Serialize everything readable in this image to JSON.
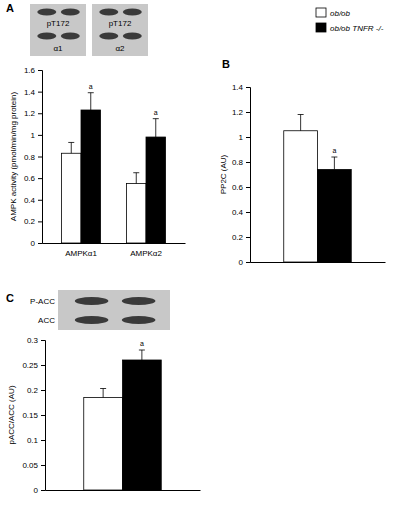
{
  "chart_data": [
    {
      "type": "bar",
      "title": "A",
      "categories": [
        "AMPKα1",
        "AMPKα2"
      ],
      "y_label": "AMPK activity (pmol/min/mg protein)",
      "series": [
        {
          "color": "#ffffff",
          "values": [
            0.83,
            0.55
          ],
          "errors": [
            0.1,
            0.1
          ]
        },
        {
          "color": "#000000",
          "values": [
            1.23,
            0.98
          ],
          "errors": [
            0.16,
            0.17
          ],
          "significance": [
            "a",
            "a"
          ]
        }
      ],
      "ylim": [
        0,
        1.6
      ],
      "yticks": [
        0,
        0.2,
        0.4,
        0.6,
        0.8,
        1,
        1.2,
        1.4,
        1.6
      ],
      "blots": [
        {
          "labels": [
            "pT172",
            "α1"
          ]
        },
        {
          "labels": [
            "pT172",
            "α2"
          ]
        }
      ]
    },
    {
      "type": "bar",
      "title": "B",
      "categories": [
        null
      ],
      "y_label": "PP2C (AU)",
      "series": [
        {
          "name": "ob/ob",
          "color": "#ffffff",
          "values": [
            1.05
          ],
          "errors": [
            0.13
          ]
        },
        {
          "name": "ob/ob TNFR -/-",
          "color": "#000000",
          "values": [
            0.74
          ],
          "errors": [
            0.1
          ],
          "significance": [
            "a"
          ]
        }
      ],
      "ylim": [
        0,
        1.4
      ],
      "yticks": [
        0,
        0.2,
        0.4,
        0.6,
        0.8,
        1,
        1.2,
        1.4
      ],
      "legend": "top-right"
    },
    {
      "type": "bar",
      "title": "C",
      "categories": [
        null
      ],
      "y_label": "pACC/ACC (AU)",
      "series": [
        {
          "color": "#ffffff",
          "values": [
            0.185
          ],
          "errors": [
            0.018
          ]
        },
        {
          "color": "#000000",
          "values": [
            0.26
          ],
          "errors": [
            0.02
          ],
          "significance": [
            "a"
          ]
        }
      ],
      "ylim": [
        0,
        0.3
      ],
      "yticks": [
        0,
        0.05,
        0.1,
        0.15,
        0.2,
        0.25,
        0.3
      ],
      "blots": [
        {
          "labels": [
            "P-ACC",
            "ACC"
          ]
        }
      ]
    }
  ]
}
